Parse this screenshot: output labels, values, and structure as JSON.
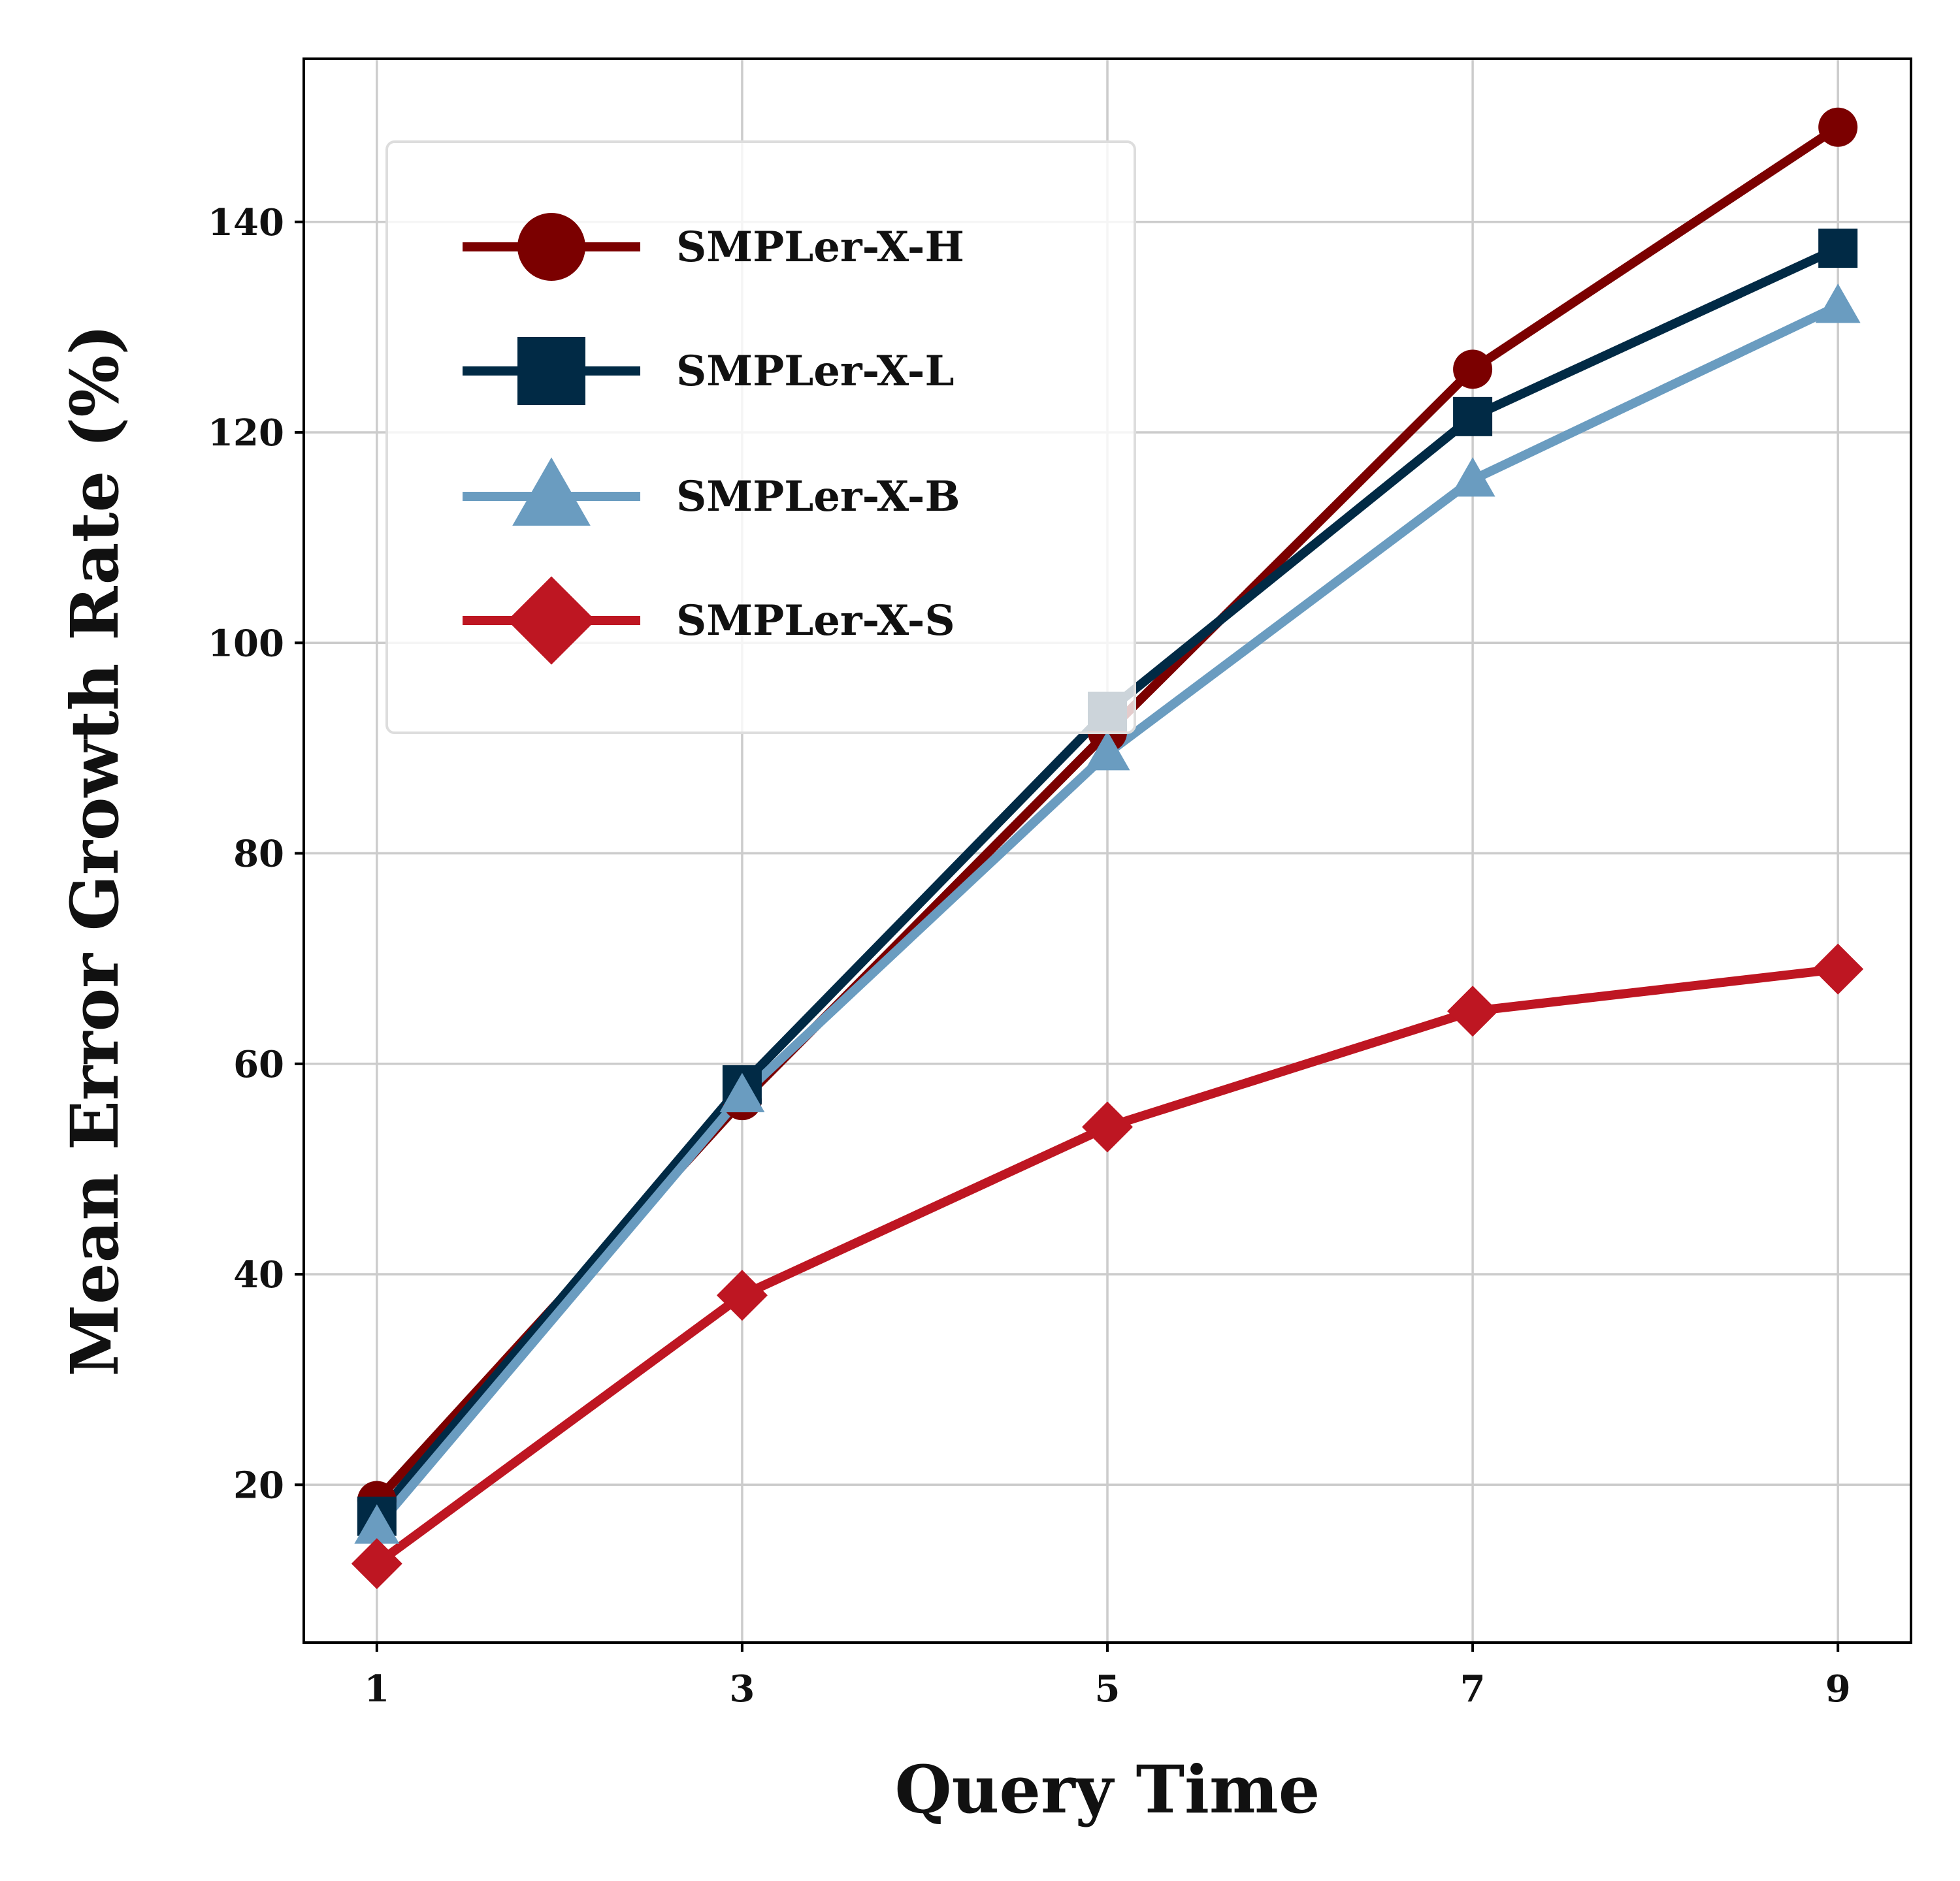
{
  "chart_data": {
    "type": "line",
    "title": "",
    "xlabel": "Query Time",
    "ylabel": "Mean Error Growth Rate (%)",
    "x": [
      1,
      3,
      5,
      7,
      9
    ],
    "xticks": [
      "1",
      "3",
      "5",
      "7",
      "9"
    ],
    "yticks": [
      "20",
      "40",
      "60",
      "80",
      "100",
      "120",
      "140"
    ],
    "xlim": [
      0.6,
      9.4
    ],
    "ylim": [
      5,
      155.5
    ],
    "grid": true,
    "legend_position": "upper-left",
    "series": [
      {
        "name": "SMPLer-X-H",
        "color": "#7b0000",
        "marker": "circle",
        "values": [
          18.5,
          56.5,
          91.5,
          126,
          149
        ]
      },
      {
        "name": "SMPLer-X-L",
        "color": "#012a45",
        "marker": "square",
        "values": [
          17,
          58,
          93.5,
          121.5,
          137.5
        ]
      },
      {
        "name": "SMPLer-X-B",
        "color": "#6a9cc0",
        "marker": "triangle",
        "values": [
          16,
          57,
          89.5,
          115.5,
          132
        ]
      },
      {
        "name": "SMPLer-X-S",
        "color": "#be1622",
        "marker": "diamond",
        "values": [
          12.5,
          38,
          54,
          65,
          69
        ]
      }
    ]
  }
}
